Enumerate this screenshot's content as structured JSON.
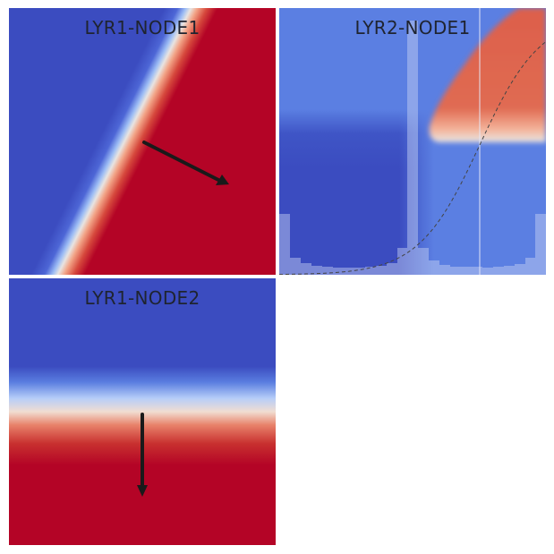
{
  "panels": [
    {
      "id": "lyr1-node1",
      "title": "LYR1-NODE1"
    },
    {
      "id": "lyr2-node1",
      "title": "LYR2-NODE1"
    },
    {
      "id": "lyr1-node2",
      "title": "LYR1-NODE2"
    }
  ],
  "colors": {
    "low": "#3b4cc0",
    "mid": "#dddddd",
    "high": "#b40426",
    "light_blue": "#5b7fe2",
    "light_red": "#d95a45",
    "arrow": "#1a1a1a"
  }
}
